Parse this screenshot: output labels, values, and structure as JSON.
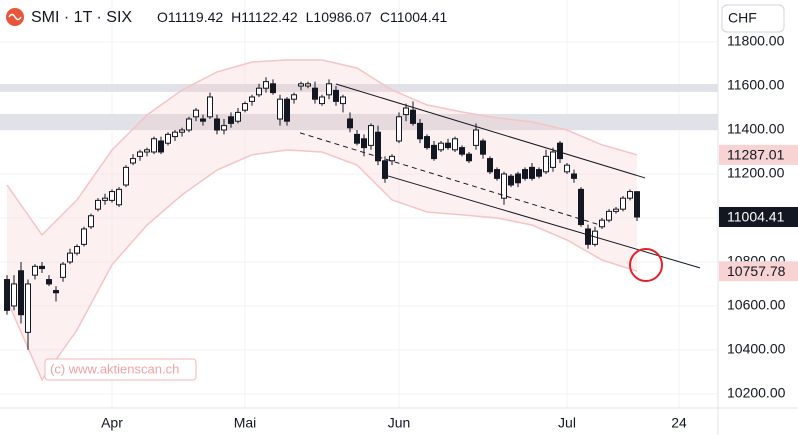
{
  "chart_data": {
    "type": "candlestick",
    "symbol": "SMI · 1T · SIX",
    "ohlc_prefixes": [
      "O",
      "H",
      "L",
      "C"
    ],
    "currency": "CHF",
    "watermark": "(c) www.aktienscan.ch",
    "categories": [
      null,
      null,
      null,
      null,
      null,
      null,
      null,
      null,
      null,
      null,
      null,
      null,
      null,
      null,
      null,
      "Apr",
      null,
      null,
      null,
      null,
      null,
      null,
      null,
      null,
      null,
      null,
      null,
      null,
      null,
      null,
      null,
      null,
      null,
      null,
      "Mai",
      null,
      null,
      null,
      null,
      null,
      null,
      null,
      null,
      null,
      null,
      null,
      null,
      null,
      null,
      null,
      null,
      null,
      null,
      null,
      null,
      null,
      "Jun",
      null,
      null,
      null,
      null,
      null,
      null,
      null,
      null,
      null,
      null,
      null,
      null,
      null,
      null,
      null,
      null,
      null,
      null,
      null,
      null,
      null,
      null,
      null,
      "Jul",
      null,
      null,
      null,
      null,
      null,
      null,
      null,
      null,
      null,
      null,
      null,
      null,
      null,
      null,
      null,
      "24",
      null,
      null,
      null,
      null,
      null
    ],
    "open": [
      10720,
      10600,
      10760,
      10480,
      10740,
      10780,
      10720,
      10670,
      10730,
      10800,
      10840,
      10880,
      10960,
      11040,
      11080,
      11080,
      11060,
      11150,
      11250,
      11280,
      11300,
      11300,
      11350,
      11340,
      11370,
      11390,
      11400,
      11460,
      11450,
      11460,
      11450,
      11400,
      11460,
      11440,
      11490,
      11530,
      11560,
      11590,
      11610,
      11450,
      11540,
      11540,
      11600,
      11600,
      11590,
      11520,
      11560,
      11580,
      11520,
      11450,
      11380,
      11360,
      11330,
      11390,
      11260,
      11260,
      11350,
      11470,
      11490,
      11430,
      11370,
      11330,
      11310,
      11340,
      11310,
      11320,
      11290,
      11330,
      11350,
      11270,
      11220,
      11090,
      11190,
      11200,
      11220,
      11230,
      11220,
      11210,
      11230,
      11340,
      11210,
      11200,
      11130,
      10950,
      10880,
      10960,
      10990,
      11030,
      11040,
      11090,
      11119.42,
      null,
      null,
      null,
      null,
      null,
      null,
      null,
      null,
      null,
      null,
      null
    ],
    "high": [
      10740,
      10740,
      10800,
      10720,
      10790,
      10800,
      10740,
      10690,
      10800,
      10860,
      10880,
      10960,
      11020,
      11090,
      11110,
      11130,
      11140,
      11240,
      11290,
      11310,
      11320,
      11370,
      11370,
      11390,
      11400,
      11410,
      11460,
      11500,
      11470,
      11570,
      11470,
      11450,
      11480,
      11500,
      11530,
      11560,
      11610,
      11640,
      11630,
      11560,
      11550,
      11570,
      11620,
      11620,
      11620,
      11560,
      11630,
      11600,
      11560,
      11480,
      11400,
      11380,
      11430,
      11420,
      11280,
      11290,
      11480,
      11520,
      11530,
      11450,
      11380,
      11350,
      11350,
      11360,
      11370,
      11330,
      11300,
      11430,
      11360,
      11280,
      11230,
      11210,
      11200,
      11210,
      11230,
      11250,
      11230,
      11310,
      11320,
      11350,
      11250,
      11220,
      11140,
      10970,
      10960,
      11000,
      11040,
      11050,
      11100,
      11130,
      11122.42,
      null,
      null,
      null,
      null,
      null,
      null,
      null,
      null,
      null,
      null,
      null
    ],
    "low": [
      10560,
      10580,
      10520,
      10400,
      10720,
      10750,
      10690,
      10620,
      10710,
      10790,
      10830,
      10870,
      10950,
      11030,
      11060,
      11070,
      11050,
      11140,
      11240,
      11260,
      11280,
      11290,
      11290,
      11330,
      11350,
      11370,
      11390,
      11440,
      11420,
      11450,
      11380,
      11380,
      11410,
      11430,
      11480,
      11510,
      11550,
      11570,
      11560,
      11420,
      11420,
      11520,
      11580,
      11590,
      11520,
      11510,
      11540,
      11510,
      11480,
      11390,
      11330,
      11280,
      11310,
      11240,
      11160,
      11240,
      11340,
      11440,
      11420,
      11340,
      11310,
      11260,
      11300,
      11310,
      11300,
      11280,
      11250,
      11310,
      11270,
      11200,
      11170,
      11060,
      11140,
      11140,
      11170,
      11170,
      11180,
      11200,
      11210,
      11250,
      11200,
      11160,
      10960,
      10860,
      10870,
      10950,
      10980,
      11020,
      11030,
      11080,
      10986.07,
      null,
      null,
      null,
      null,
      null,
      null,
      null,
      null,
      null,
      null,
      null
    ],
    "close": [
      10580,
      10700,
      10560,
      10700,
      10780,
      10770,
      10700,
      10660,
      10790,
      10840,
      10870,
      10950,
      11010,
      11080,
      11090,
      11120,
      11130,
      11230,
      11270,
      11300,
      11310,
      11360,
      11300,
      11380,
      11390,
      11400,
      11450,
      11490,
      11440,
      11550,
      11400,
      11420,
      11430,
      11480,
      11520,
      11550,
      11590,
      11620,
      11570,
      11540,
      11440,
      11560,
      11610,
      11610,
      11540,
      11550,
      11610,
      11530,
      11550,
      11410,
      11340,
      11320,
      11420,
      11260,
      11180,
      11280,
      11460,
      11500,
      11430,
      11360,
      11320,
      11270,
      11340,
      11320,
      11360,
      11290,
      11260,
      11400,
      11290,
      11210,
      11180,
      11200,
      11150,
      11160,
      11180,
      11180,
      11190,
      11280,
      11300,
      11270,
      11240,
      11180,
      10970,
      10880,
      10940,
      10990,
      11030,
      11040,
      11090,
      11120,
      11004.41,
      null,
      null,
      null,
      null,
      null,
      null,
      null,
      null,
      null,
      null,
      null
    ],
    "envelope": {
      "color": "#f6c4c4",
      "upper": [
        11150,
        10923,
        11082,
        11309,
        11468,
        11582,
        11664,
        11709,
        11718,
        11718,
        11682,
        11582,
        11514,
        11482,
        11455,
        11437,
        11400,
        11332,
        11287.01
      ],
      "lower": [
        10627,
        10264,
        10491,
        10787,
        10968,
        11105,
        11218,
        11287,
        11309,
        11300,
        11241,
        11082,
        11027,
        11014,
        11000,
        10968,
        10900,
        10809,
        10757.78
      ]
    },
    "zones": [
      [
        11573,
        11609
      ],
      [
        11400,
        11473
      ]
    ],
    "trendlines": [
      {
        "values": [
          11609,
          11182
        ],
        "dashed": false
      },
      {
        "values": [
          11191,
          10773
        ],
        "dashed": false
      },
      {
        "values": [
          11387,
          10968
        ],
        "dashed": true
      }
    ],
    "ylim": [
      10136,
      11991
    ],
    "yticks": [
      {
        "value": 10200,
        "label": "10200.00"
      },
      {
        "value": 10400,
        "label": "10400.00"
      },
      {
        "value": 10600,
        "label": "10600.00"
      },
      {
        "value": 10800,
        "label": "10800.00"
      },
      {
        "value": 11000,
        "label": "11000.00"
      },
      {
        "value": 11200,
        "label": "11200.00"
      },
      {
        "value": 11400,
        "label": "11400.00"
      },
      {
        "value": 11600,
        "label": "11600.00"
      },
      {
        "value": 11800,
        "label": "11800.00"
      }
    ],
    "grid": true
  }
}
